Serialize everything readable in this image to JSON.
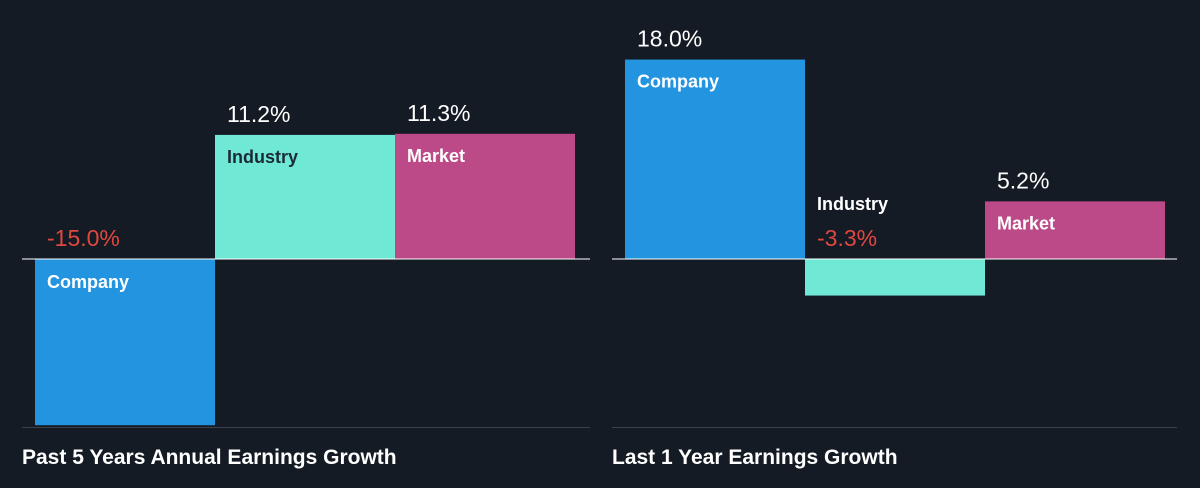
{
  "colors": {
    "background": "#151b24",
    "company": "#2394e0",
    "industry": "#6fe8d6",
    "market": "#bc4a89",
    "positive_label": "#ffffff",
    "negative_label": "#e0473f",
    "name_on_dark": "#ffffff",
    "name_on_light": "#1c2a36",
    "axis": "#ffffff",
    "divider": "#3a414b"
  },
  "chart_data": [
    {
      "type": "bar",
      "title": "Past 5 Years Annual Earnings Growth",
      "categories": [
        "Company",
        "Industry",
        "Market"
      ],
      "values": [
        -15.0,
        11.2,
        11.3
      ],
      "labels": [
        "-15.0%",
        "11.2%",
        "11.3%"
      ],
      "unit": "%"
    },
    {
      "type": "bar",
      "title": "Last 1 Year Earnings Growth",
      "categories": [
        "Company",
        "Industry",
        "Market"
      ],
      "values": [
        18.0,
        -3.3,
        5.2
      ],
      "labels": [
        "18.0%",
        "-3.3%",
        "5.2%"
      ],
      "unit": "%"
    }
  ]
}
